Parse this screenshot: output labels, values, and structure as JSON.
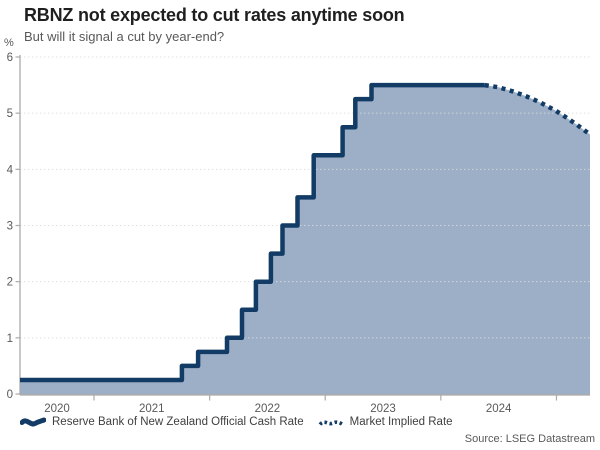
{
  "header": {
    "title": "RBNZ not expected to cut rates anytime soon",
    "subtitle": "But will it signal a cut by year-end?"
  },
  "footer": {
    "source": "Source: LSEG Datastream"
  },
  "chart_data": {
    "type": "area",
    "title": "RBNZ not expected to cut rates anytime soon",
    "subtitle": "But will it signal a cut by year-end?",
    "xlabel": "",
    "ylabel": "%",
    "xlim": [
      2020.36,
      2025.29
    ],
    "ylim": [
      0,
      6
    ],
    "grid": "dotted-horizontal",
    "legend_position": "bottom",
    "y_ticks": [
      0,
      1,
      2,
      3,
      4,
      5,
      6
    ],
    "x_tick_boundaries": [
      2021,
      2022,
      2023,
      2024,
      2025
    ],
    "x_year_labels": [
      {
        "label": "2020",
        "t": 2020.68
      },
      {
        "label": "2021",
        "t": 2021.5
      },
      {
        "label": "2022",
        "t": 2022.5
      },
      {
        "label": "2023",
        "t": 2023.5
      },
      {
        "label": "2024",
        "t": 2024.5
      }
    ],
    "series": [
      {
        "name": "Reserve Bank of New Zealand Official Cash Rate",
        "style": "step-solid",
        "points": [
          [
            2020.36,
            0.25
          ],
          [
            2021.76,
            0.5
          ],
          [
            2021.9,
            0.75
          ],
          [
            2022.15,
            1.0
          ],
          [
            2022.28,
            1.5
          ],
          [
            2022.4,
            2.0
          ],
          [
            2022.53,
            2.5
          ],
          [
            2022.63,
            3.0
          ],
          [
            2022.76,
            3.5
          ],
          [
            2022.9,
            4.25
          ],
          [
            2023.15,
            4.75
          ],
          [
            2023.26,
            5.25
          ],
          [
            2023.4,
            5.5
          ],
          [
            2024.38,
            5.5
          ]
        ]
      },
      {
        "name": "Market Implied Rate",
        "style": "dotted",
        "points": [
          [
            2024.38,
            5.5
          ],
          [
            2024.5,
            5.46
          ],
          [
            2024.62,
            5.39
          ],
          [
            2024.74,
            5.3
          ],
          [
            2024.86,
            5.19
          ],
          [
            2024.98,
            5.06
          ],
          [
            2025.08,
            4.93
          ],
          [
            2025.18,
            4.79
          ],
          [
            2025.29,
            4.62
          ]
        ]
      }
    ],
    "colors": {
      "line": "#123c66",
      "fill": "#9cafc6",
      "axis": "#ababab",
      "grid": "#dcdcdc",
      "title": "#1f1f1f",
      "muted": "#595959"
    }
  }
}
